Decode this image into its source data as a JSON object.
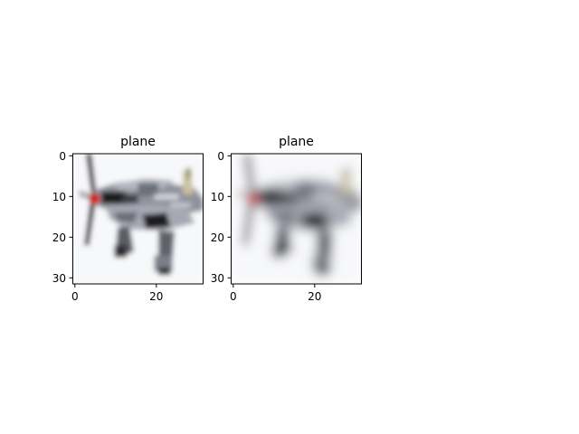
{
  "figure": {
    "panels": [
      {
        "title": "plane",
        "x_ticks": [
          "0",
          "20"
        ],
        "y_ticks": [
          "0",
          "10",
          "20",
          "30"
        ],
        "image_description": "low-resolution pixelated image of a grey propeller plane"
      },
      {
        "title": "plane",
        "x_ticks": [
          "0",
          "20"
        ],
        "y_ticks": [
          "0",
          "10",
          "20",
          "30"
        ],
        "image_description": "low-resolution pixelated image of a grey propeller plane (slightly blurred reconstruction)"
      }
    ]
  }
}
